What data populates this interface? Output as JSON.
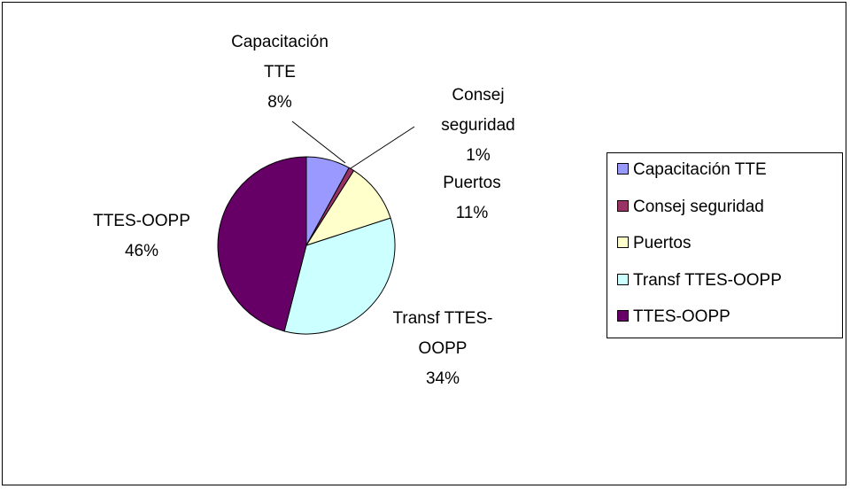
{
  "chart_data": {
    "type": "pie",
    "categories": [
      "Capacitación TTE",
      "Consej seguridad",
      "Puertos",
      "Transf TTES-OOPP",
      "TTES-OOPP"
    ],
    "values": [
      8,
      1,
      11,
      34,
      46
    ],
    "value_labels": [
      "8%",
      "1%",
      "11%",
      "34%",
      "46%"
    ],
    "colors": [
      "#9999FF",
      "#993366",
      "#FFFFCC",
      "#CCFFFF",
      "#660066"
    ],
    "legend": "right"
  }
}
